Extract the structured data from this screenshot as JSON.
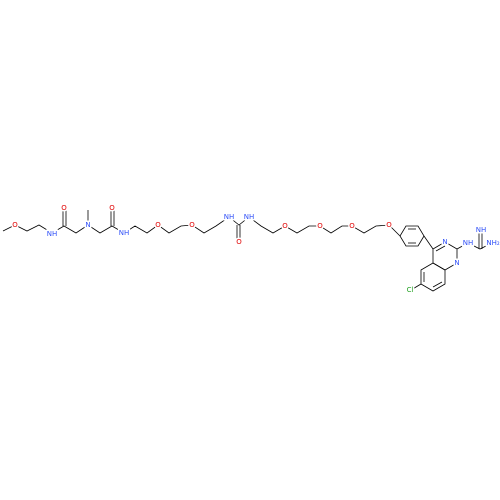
{
  "atoms": [
    {
      "label": "O"
    },
    {
      "label": "NH"
    },
    {
      "label": "O"
    },
    {
      "label": "N"
    },
    {
      "label": "O"
    },
    {
      "label": "NH"
    },
    {
      "label": "O"
    },
    {
      "label": "O"
    },
    {
      "label": "NH"
    },
    {
      "label": "O"
    },
    {
      "label": "NH"
    },
    {
      "label": "O"
    },
    {
      "label": "O"
    },
    {
      "label": "O"
    },
    {
      "label": "O"
    },
    {
      "label": "N"
    },
    {
      "label": "N"
    },
    {
      "label": "NH"
    },
    {
      "label": "NH"
    },
    {
      "label": "NH₂"
    },
    {
      "label": "Cl"
    }
  ]
}
